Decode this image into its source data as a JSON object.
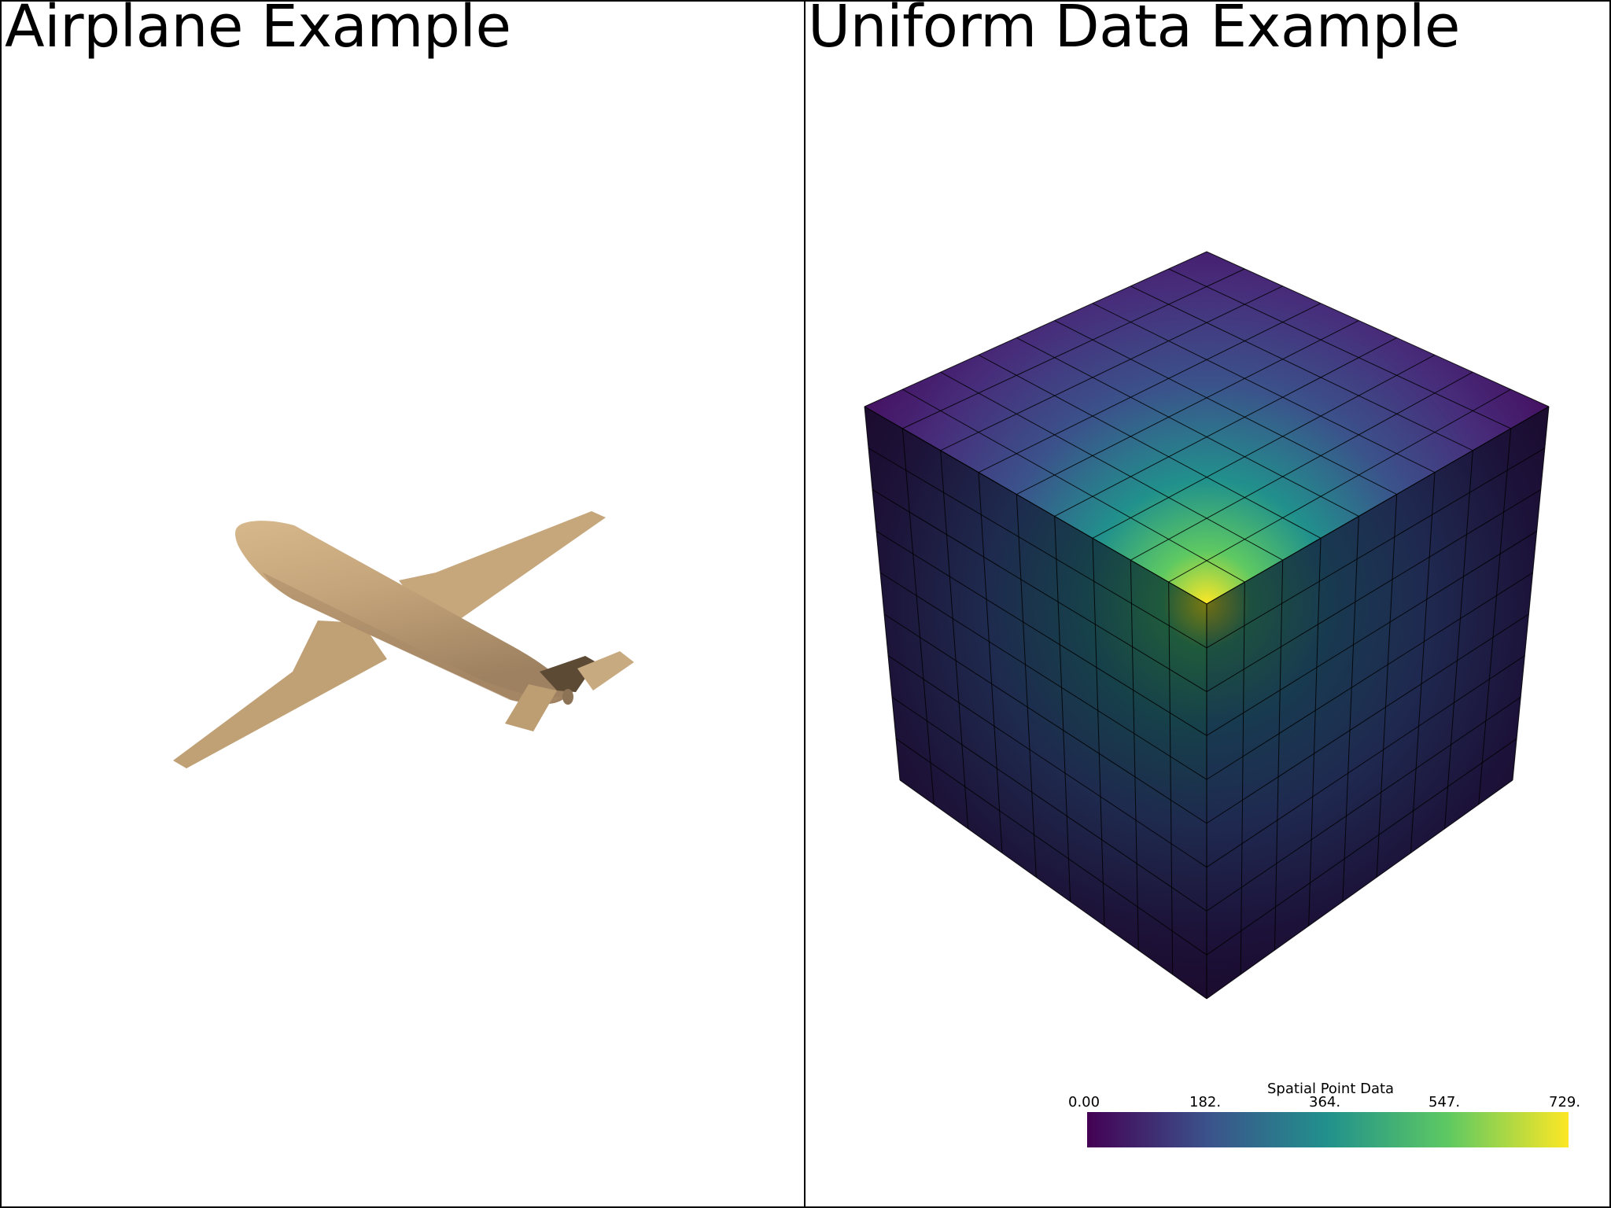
{
  "viewports": {
    "left": {
      "title": "Airplane Example"
    },
    "right": {
      "title": "Uniform Data Example"
    }
  },
  "airplane": {
    "color": "#c4a47a",
    "dark_color": "#6e5a41"
  },
  "mesh": {
    "grid_divisions": 9,
    "colormap": "viridis",
    "edge_color": "#000000"
  },
  "scalar_bar": {
    "title": "Spatial Point Data",
    "ticks": [
      "0.00",
      "182.",
      "364.",
      "547.",
      "729."
    ],
    "range": [
      0,
      729
    ],
    "colors": [
      "#440154",
      "#3b528b",
      "#21918c",
      "#5ec962",
      "#fde725"
    ]
  }
}
